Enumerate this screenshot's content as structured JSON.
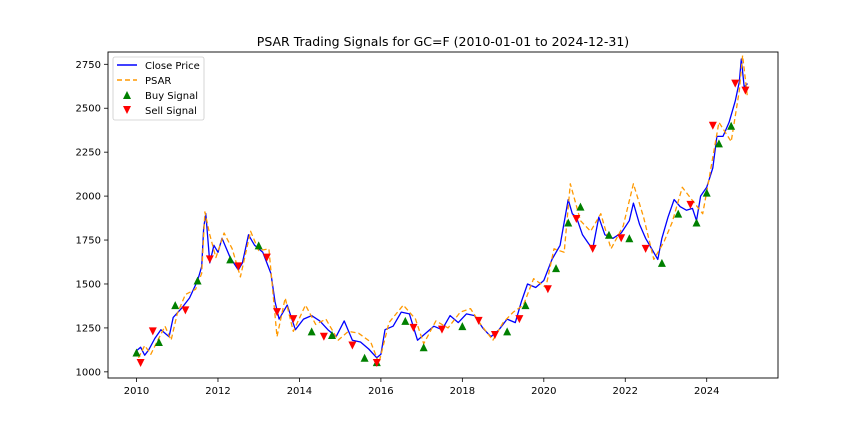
{
  "chart_data": {
    "type": "line",
    "title": "PSAR Trading Signals for GC=F (2010-01-01 to 2024-12-31)",
    "xlabel": "",
    "ylabel": "",
    "xlim": [
      2009.3,
      2025.75
    ],
    "ylim": [
      965,
      2820
    ],
    "x_ticks": [
      2010,
      2012,
      2014,
      2016,
      2018,
      2020,
      2022,
      2024
    ],
    "y_ticks": [
      1000,
      1250,
      1500,
      1750,
      2000,
      2250,
      2500,
      2750
    ],
    "grid": false,
    "legend_position": "top-left",
    "legend": [
      {
        "label": "Close Price",
        "kind": "line",
        "color": "#0000ff"
      },
      {
        "label": "PSAR",
        "kind": "dashed",
        "color": "#ff9900"
      },
      {
        "label": "Buy Signal",
        "kind": "triangle-up",
        "color": "#008000"
      },
      {
        "label": "Sell Signal",
        "kind": "triangle-down",
        "color": "#ff0000"
      }
    ],
    "series": [
      {
        "name": "Close Price",
        "color": "#0000ff",
        "points": [
          [
            2010.0,
            1120
          ],
          [
            2010.1,
            1140
          ],
          [
            2010.2,
            1095
          ],
          [
            2010.3,
            1125
          ],
          [
            2010.45,
            1190
          ],
          [
            2010.6,
            1240
          ],
          [
            2010.8,
            1200
          ],
          [
            2010.9,
            1310
          ],
          [
            2011.1,
            1360
          ],
          [
            2011.3,
            1420
          ],
          [
            2011.5,
            1520
          ],
          [
            2011.6,
            1600
          ],
          [
            2011.65,
            1820
          ],
          [
            2011.7,
            1900
          ],
          [
            2011.8,
            1620
          ],
          [
            2011.9,
            1720
          ],
          [
            2012.0,
            1680
          ],
          [
            2012.1,
            1760
          ],
          [
            2012.3,
            1650
          ],
          [
            2012.5,
            1580
          ],
          [
            2012.6,
            1620
          ],
          [
            2012.75,
            1780
          ],
          [
            2012.9,
            1720
          ],
          [
            2013.1,
            1680
          ],
          [
            2013.3,
            1560
          ],
          [
            2013.4,
            1400
          ],
          [
            2013.5,
            1300
          ],
          [
            2013.7,
            1380
          ],
          [
            2013.9,
            1240
          ],
          [
            2014.1,
            1300
          ],
          [
            2014.3,
            1320
          ],
          [
            2014.5,
            1290
          ],
          [
            2014.7,
            1240
          ],
          [
            2014.9,
            1200
          ],
          [
            2015.1,
            1290
          ],
          [
            2015.3,
            1180
          ],
          [
            2015.5,
            1170
          ],
          [
            2015.7,
            1130
          ],
          [
            2015.9,
            1080
          ],
          [
            2016.0,
            1100
          ],
          [
            2016.1,
            1240
          ],
          [
            2016.3,
            1260
          ],
          [
            2016.5,
            1340
          ],
          [
            2016.7,
            1330
          ],
          [
            2016.9,
            1180
          ],
          [
            2017.1,
            1220
          ],
          [
            2017.3,
            1260
          ],
          [
            2017.5,
            1240
          ],
          [
            2017.7,
            1320
          ],
          [
            2017.9,
            1280
          ],
          [
            2018.1,
            1330
          ],
          [
            2018.3,
            1320
          ],
          [
            2018.5,
            1250
          ],
          [
            2018.7,
            1200
          ],
          [
            2018.9,
            1240
          ],
          [
            2019.1,
            1300
          ],
          [
            2019.3,
            1280
          ],
          [
            2019.45,
            1400
          ],
          [
            2019.6,
            1500
          ],
          [
            2019.8,
            1480
          ],
          [
            2020.0,
            1520
          ],
          [
            2020.2,
            1640
          ],
          [
            2020.4,
            1720
          ],
          [
            2020.6,
            1980
          ],
          [
            2020.7,
            1900
          ],
          [
            2020.8,
            1880
          ],
          [
            2020.95,
            1780
          ],
          [
            2021.1,
            1730
          ],
          [
            2021.2,
            1700
          ],
          [
            2021.35,
            1880
          ],
          [
            2021.5,
            1780
          ],
          [
            2021.7,
            1760
          ],
          [
            2021.9,
            1790
          ],
          [
            2022.1,
            1860
          ],
          [
            2022.2,
            1960
          ],
          [
            2022.35,
            1840
          ],
          [
            2022.5,
            1760
          ],
          [
            2022.65,
            1700
          ],
          [
            2022.8,
            1640
          ],
          [
            2022.9,
            1760
          ],
          [
            2023.05,
            1880
          ],
          [
            2023.2,
            1980
          ],
          [
            2023.35,
            1940
          ],
          [
            2023.5,
            1920
          ],
          [
            2023.65,
            1930
          ],
          [
            2023.75,
            1860
          ],
          [
            2023.85,
            2000
          ],
          [
            2024.0,
            2050
          ],
          [
            2024.15,
            2160
          ],
          [
            2024.25,
            2340
          ],
          [
            2024.4,
            2340
          ],
          [
            2024.55,
            2420
          ],
          [
            2024.7,
            2540
          ],
          [
            2024.8,
            2650
          ],
          [
            2024.85,
            2780
          ],
          [
            2024.92,
            2620
          ],
          [
            2025.0,
            2640
          ]
        ]
      },
      {
        "name": "PSAR",
        "color": "#ff9900",
        "points": [
          [
            2010.05,
            1080
          ],
          [
            2010.2,
            1150
          ],
          [
            2010.35,
            1100
          ],
          [
            2010.5,
            1170
          ],
          [
            2010.7,
            1260
          ],
          [
            2010.85,
            1180
          ],
          [
            2011.0,
            1330
          ],
          [
            2011.2,
            1440
          ],
          [
            2011.45,
            1470
          ],
          [
            2011.6,
            1560
          ],
          [
            2011.68,
            1910
          ],
          [
            2011.8,
            1780
          ],
          [
            2011.95,
            1650
          ],
          [
            2012.15,
            1790
          ],
          [
            2012.35,
            1700
          ],
          [
            2012.55,
            1540
          ],
          [
            2012.8,
            1800
          ],
          [
            2013.0,
            1690
          ],
          [
            2013.25,
            1700
          ],
          [
            2013.45,
            1200
          ],
          [
            2013.65,
            1420
          ],
          [
            2013.85,
            1230
          ],
          [
            2014.15,
            1380
          ],
          [
            2014.4,
            1270
          ],
          [
            2014.65,
            1300
          ],
          [
            2014.95,
            1180
          ],
          [
            2015.2,
            1230
          ],
          [
            2015.45,
            1220
          ],
          [
            2015.75,
            1170
          ],
          [
            2015.95,
            1050
          ],
          [
            2016.2,
            1280
          ],
          [
            2016.55,
            1380
          ],
          [
            2016.85,
            1300
          ],
          [
            2017.05,
            1160
          ],
          [
            2017.35,
            1290
          ],
          [
            2017.65,
            1250
          ],
          [
            2017.95,
            1340
          ],
          [
            2018.2,
            1360
          ],
          [
            2018.45,
            1270
          ],
          [
            2018.75,
            1180
          ],
          [
            2019.0,
            1280
          ],
          [
            2019.25,
            1340
          ],
          [
            2019.5,
            1380
          ],
          [
            2019.75,
            1530
          ],
          [
            2020.05,
            1480
          ],
          [
            2020.25,
            1700
          ],
          [
            2020.5,
            1680
          ],
          [
            2020.65,
            2070
          ],
          [
            2020.9,
            1860
          ],
          [
            2021.15,
            1800
          ],
          [
            2021.4,
            1900
          ],
          [
            2021.65,
            1700
          ],
          [
            2021.95,
            1830
          ],
          [
            2022.2,
            2070
          ],
          [
            2022.45,
            1880
          ],
          [
            2022.7,
            1640
          ],
          [
            2022.95,
            1740
          ],
          [
            2023.15,
            1850
          ],
          [
            2023.4,
            2050
          ],
          [
            2023.7,
            1960
          ],
          [
            2023.9,
            1900
          ],
          [
            2024.05,
            2090
          ],
          [
            2024.3,
            2420
          ],
          [
            2024.6,
            2310
          ],
          [
            2024.8,
            2600
          ],
          [
            2024.88,
            2800
          ],
          [
            2025.0,
            2560
          ]
        ]
      }
    ],
    "buy_signals": [
      [
        2010.0,
        1110
      ],
      [
        2010.55,
        1170
      ],
      [
        2010.95,
        1380
      ],
      [
        2011.5,
        1520
      ],
      [
        2012.3,
        1640
      ],
      [
        2013.0,
        1720
      ],
      [
        2014.3,
        1230
      ],
      [
        2014.8,
        1210
      ],
      [
        2015.6,
        1080
      ],
      [
        2015.9,
        1055
      ],
      [
        2016.6,
        1290
      ],
      [
        2017.05,
        1140
      ],
      [
        2018.0,
        1260
      ],
      [
        2019.1,
        1230
      ],
      [
        2019.55,
        1380
      ],
      [
        2020.3,
        1590
      ],
      [
        2020.6,
        1850
      ],
      [
        2020.9,
        1940
      ],
      [
        2021.6,
        1780
      ],
      [
        2022.1,
        1760
      ],
      [
        2022.9,
        1620
      ],
      [
        2023.3,
        1900
      ],
      [
        2023.75,
        1850
      ],
      [
        2024.0,
        2020
      ],
      [
        2024.3,
        2300
      ],
      [
        2024.6,
        2400
      ]
    ],
    "sell_signals": [
      [
        2010.1,
        1050
      ],
      [
        2010.4,
        1230
      ],
      [
        2011.2,
        1350
      ],
      [
        2011.8,
        1640
      ],
      [
        2012.5,
        1600
      ],
      [
        2013.2,
        1650
      ],
      [
        2013.45,
        1340
      ],
      [
        2013.85,
        1300
      ],
      [
        2014.6,
        1200
      ],
      [
        2015.3,
        1150
      ],
      [
        2015.9,
        1050
      ],
      [
        2016.8,
        1250
      ],
      [
        2017.5,
        1240
      ],
      [
        2018.4,
        1290
      ],
      [
        2018.8,
        1210
      ],
      [
        2019.4,
        1300
      ],
      [
        2020.1,
        1470
      ],
      [
        2020.8,
        1870
      ],
      [
        2021.2,
        1700
      ],
      [
        2021.9,
        1760
      ],
      [
        2022.5,
        1700
      ],
      [
        2023.6,
        1950
      ],
      [
        2024.15,
        2400
      ],
      [
        2024.7,
        2640
      ],
      [
        2024.95,
        2600
      ]
    ]
  }
}
